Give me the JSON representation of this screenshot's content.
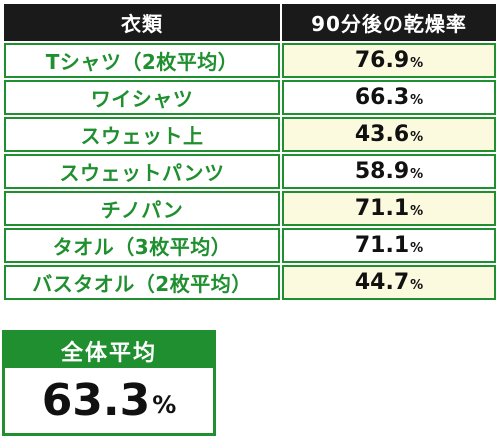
{
  "table": {
    "headers": [
      "衣類",
      "90分後の乾燥率"
    ],
    "rows": [
      {
        "item": "Tシャツ（2枚平均）",
        "rate": "76.9",
        "unit": "%"
      },
      {
        "item": "ワイシャツ",
        "rate": "66.3",
        "unit": "%"
      },
      {
        "item": "スウェット上",
        "rate": "43.6",
        "unit": "%"
      },
      {
        "item": "スウェットパンツ",
        "rate": "58.9",
        "unit": "%"
      },
      {
        "item": "チノパン",
        "rate": "71.1",
        "unit": "%"
      },
      {
        "item": "タオル（3枚平均）",
        "rate": "71.1",
        "unit": "%"
      },
      {
        "item": "バスタオル（2枚平均）",
        "rate": "44.7",
        "unit": "%"
      }
    ]
  },
  "average": {
    "label": "全体平均",
    "value": "63.3",
    "unit": "%"
  },
  "colors": {
    "header_bg": "#1a1a1a",
    "accent_green": "#1f8f2f",
    "rate_highlight": "#fbf9de"
  }
}
